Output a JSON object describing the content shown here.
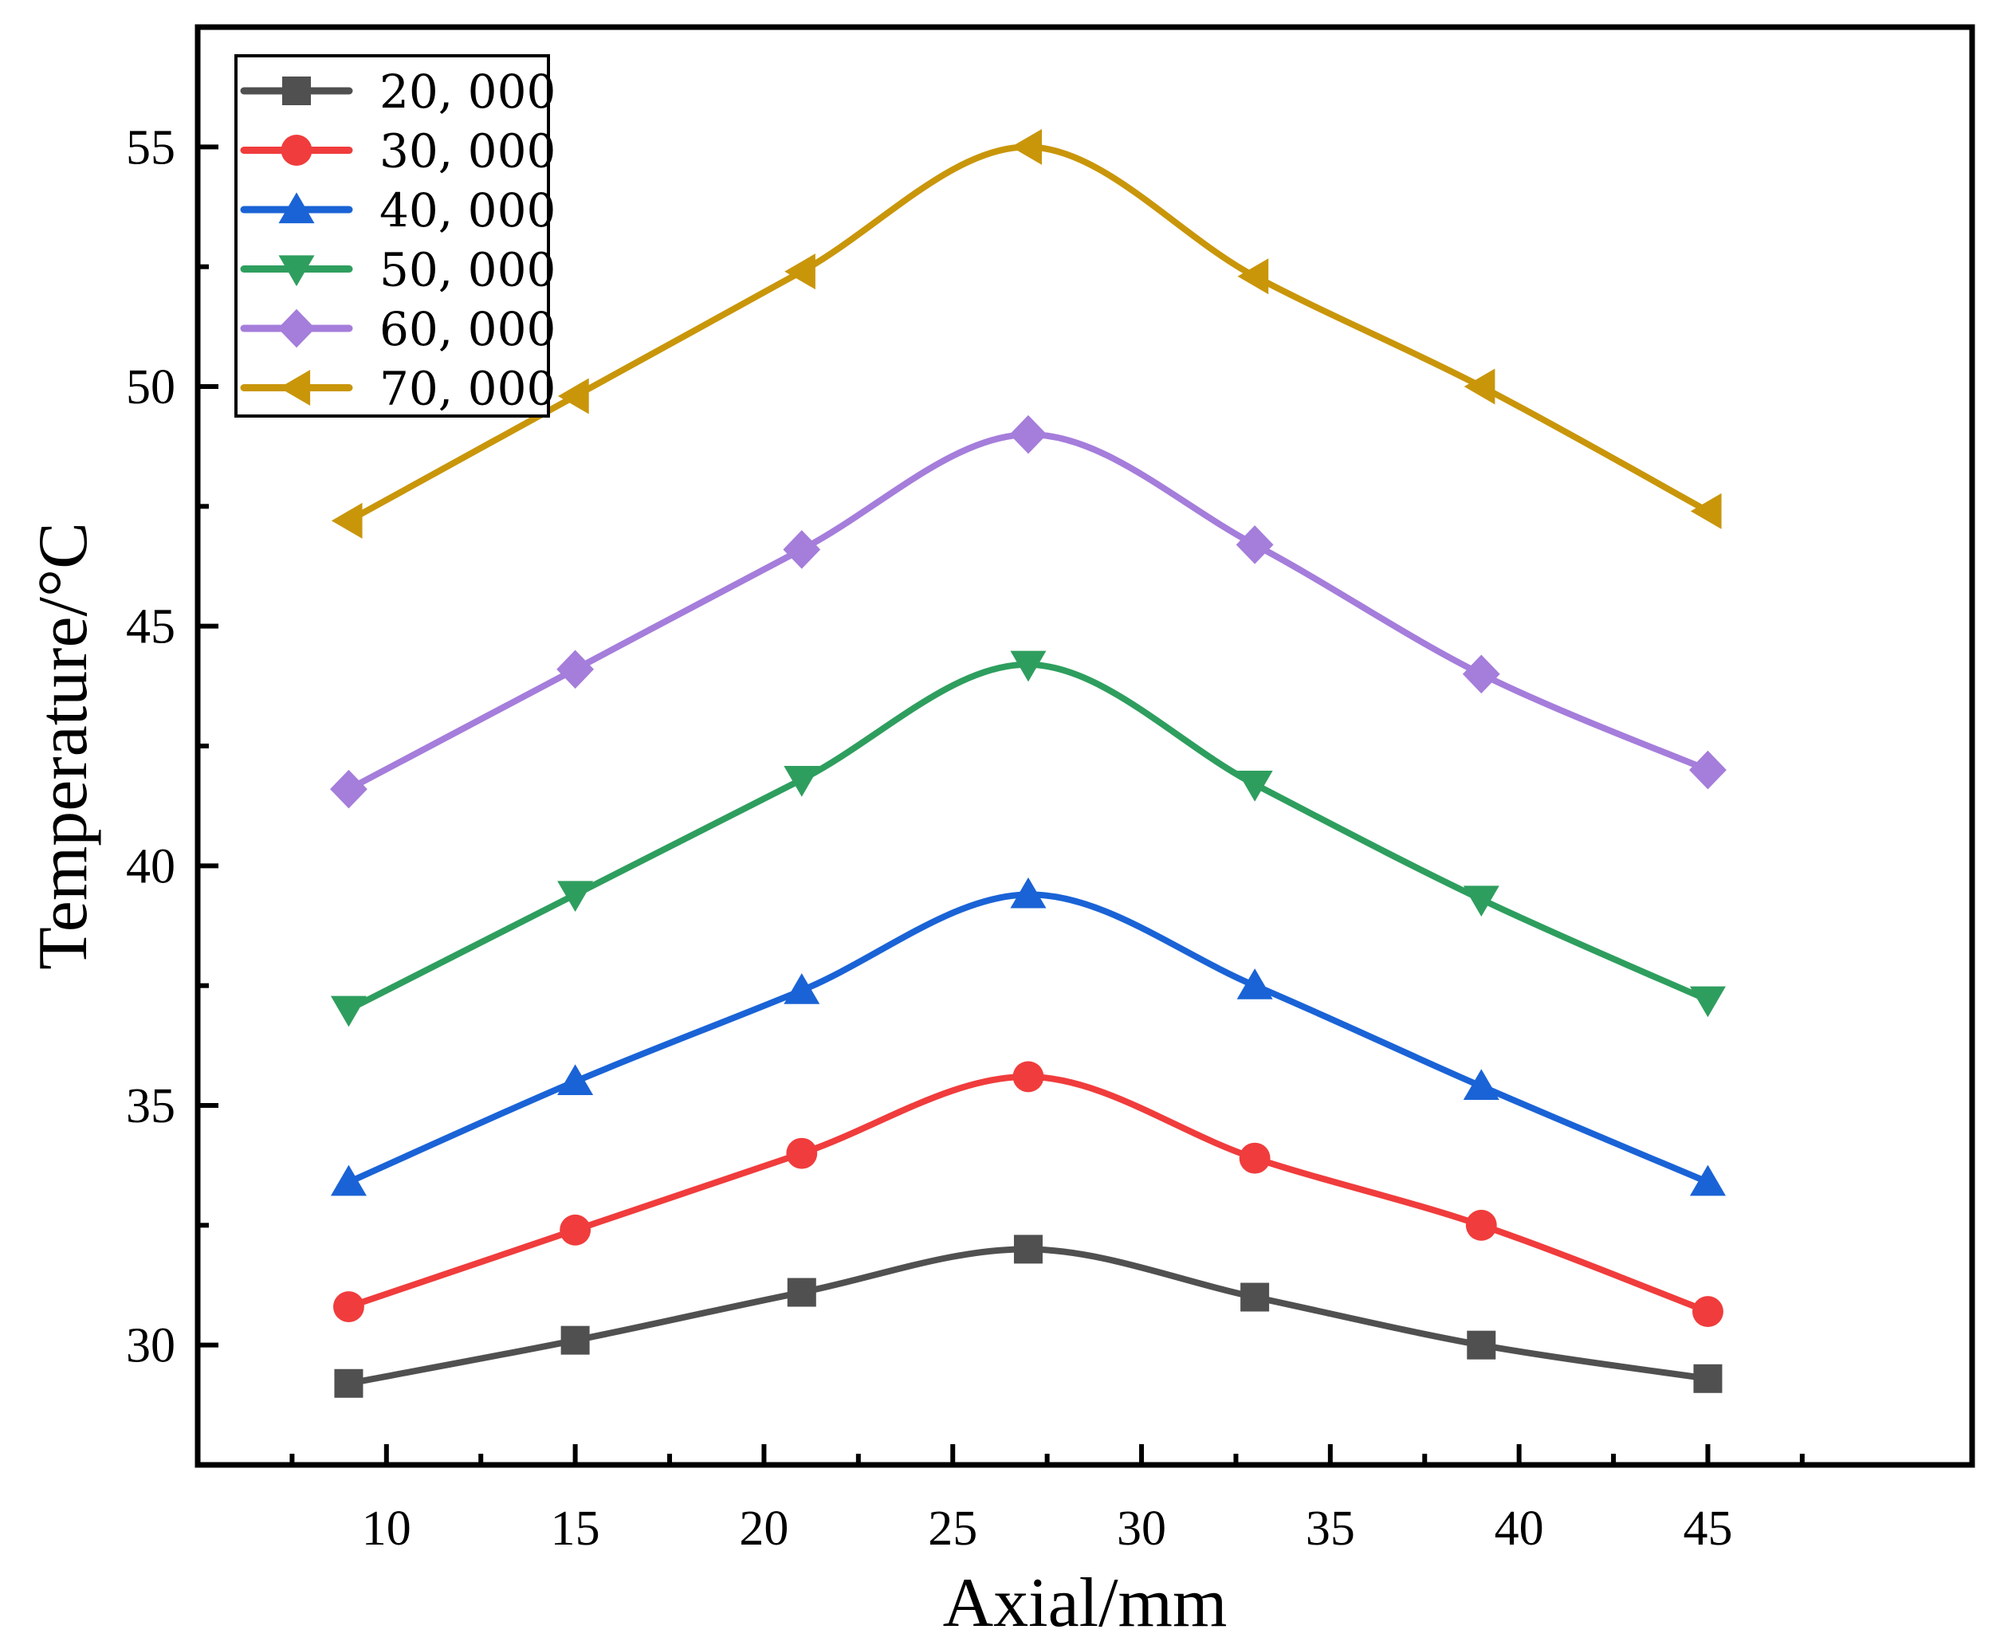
{
  "chart_data": {
    "type": "line",
    "title": "",
    "xlabel": "Axial/mm",
    "ylabel": "Temperature/°C",
    "xlim": [
      5,
      52
    ],
    "ylim": [
      27.5,
      57.5
    ],
    "xticks": [
      10,
      15,
      20,
      25,
      30,
      35,
      40,
      45
    ],
    "yticks": [
      30,
      35,
      40,
      45,
      50,
      55
    ],
    "grid": false,
    "legend_position": "top-left",
    "x": [
      9,
      15,
      21,
      27,
      33,
      39,
      45
    ],
    "series": [
      {
        "name": "20, 000",
        "color": "#505050",
        "marker": "square",
        "values": [
          29.2,
          30.1,
          31.1,
          32.0,
          31.0,
          30.0,
          29.3
        ]
      },
      {
        "name": "30, 000",
        "color": "#f03c3c",
        "marker": "circle",
        "values": [
          30.8,
          32.4,
          34.0,
          35.6,
          33.9,
          32.5,
          30.7
        ]
      },
      {
        "name": "40, 000",
        "color": "#1a63d6",
        "marker": "triangle-up",
        "values": [
          33.4,
          35.5,
          37.4,
          39.4,
          37.5,
          35.4,
          33.4
        ]
      },
      {
        "name": "50, 000",
        "color": "#2e9e5e",
        "marker": "triangle-down",
        "values": [
          37.0,
          39.4,
          41.8,
          44.2,
          41.7,
          39.3,
          37.2
        ]
      },
      {
        "name": "60, 000",
        "color": "#a57ddb",
        "marker": "diamond",
        "values": [
          41.6,
          44.1,
          46.6,
          49.0,
          46.7,
          44.0,
          42.0
        ]
      },
      {
        "name": "70, 000",
        "color": "#c9960a",
        "marker": "triangle-left",
        "values": [
          47.2,
          49.8,
          52.4,
          55.0,
          52.3,
          50.0,
          47.4
        ]
      }
    ]
  }
}
